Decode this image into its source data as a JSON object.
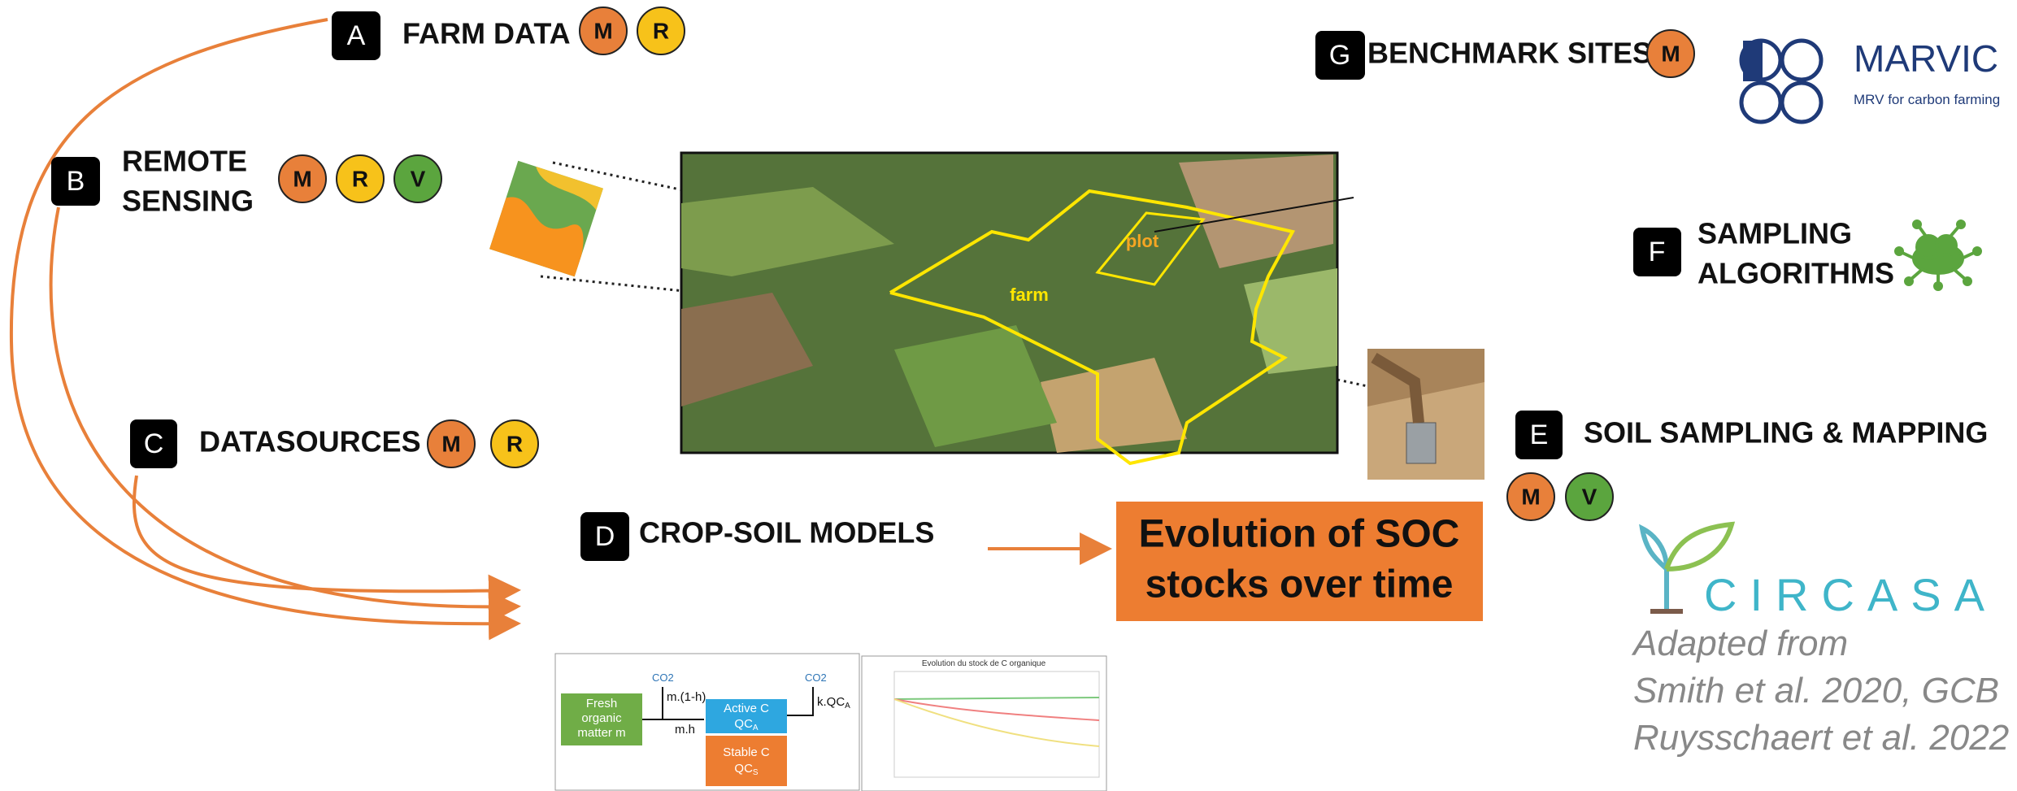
{
  "nodes": [
    {
      "letter": "A",
      "label": [
        "FARM DATA"
      ],
      "badges": [
        "M",
        "R"
      ]
    },
    {
      "letter": "B",
      "label": [
        "REMOTE",
        "SENSING"
      ],
      "badges": [
        "M",
        "R",
        "V"
      ]
    },
    {
      "letter": "C",
      "label": [
        "DATASOURCES"
      ],
      "badges": [
        "M",
        "R"
      ]
    },
    {
      "letter": "D",
      "label": [
        "CROP-SOIL MODELS"
      ],
      "badges": []
    },
    {
      "letter": "E",
      "label": [
        "SOIL SAMPLING & MAPPING"
      ],
      "badges": [
        "M",
        "V"
      ]
    },
    {
      "letter": "F",
      "label": [
        "SAMPLING",
        "ALGORITHMS"
      ],
      "badges": []
    },
    {
      "letter": "G",
      "label": [
        "BENCHMARK SITES"
      ],
      "badges": [
        "M"
      ]
    }
  ],
  "aerial_photo": {
    "labels": [
      "farm",
      "plot"
    ]
  },
  "output": {
    "lines": [
      "Evolution of SOC",
      "stocks over time"
    ]
  },
  "logos": {
    "marvic": {
      "name": "MARVIC",
      "tagline": "MRV for carbon farming"
    },
    "circasa": "CIRCASA"
  },
  "credit": [
    "Adapted from",
    "Smith et al. 2020, GCB",
    "Ruysschaert et al. 2022"
  ],
  "model_diagram": {
    "fresh": [
      "Fresh",
      "organic",
      "matter m"
    ],
    "co2": "CO2",
    "flux_out": "m.(1-h)",
    "flux_in": "m.h",
    "active": [
      "Active C",
      "QC",
      "A"
    ],
    "stable": [
      "Stable C",
      "QC",
      "S"
    ],
    "decay": [
      "k.QC",
      "A"
    ]
  },
  "model_chart": {
    "title": "Evolution du stock de C organique"
  }
}
